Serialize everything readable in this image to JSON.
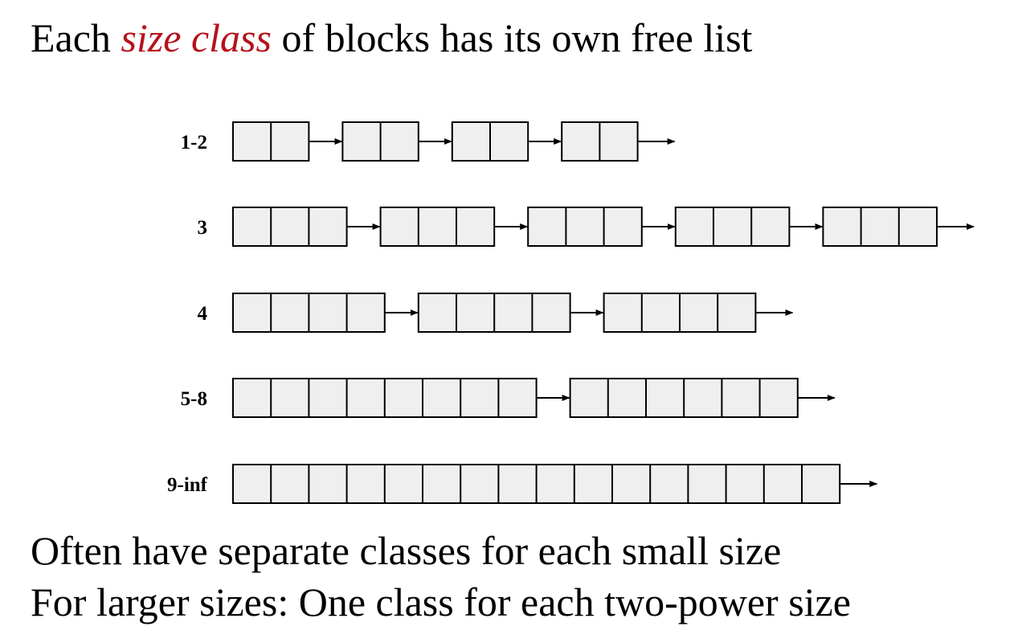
{
  "title": {
    "prefix": "Each ",
    "emphasis": "size class",
    "suffix": " of blocks has its own free list"
  },
  "colors": {
    "emphasis": "#b5121b",
    "cell_fill": "#efefef",
    "stroke": "#000000"
  },
  "free_lists": [
    {
      "label": "1-2",
      "blocks": [
        2,
        2,
        2,
        2
      ]
    },
    {
      "label": "3",
      "blocks": [
        3,
        3,
        3,
        3,
        3
      ]
    },
    {
      "label": "4",
      "blocks": [
        4,
        4,
        4
      ]
    },
    {
      "label": "5-8",
      "blocks": [
        8,
        6
      ]
    },
    {
      "label": "9-inf",
      "blocks": [
        16
      ]
    }
  ],
  "bullets": [
    "Often have separate classes for each small size",
    "For larger sizes: One class for each two-power size"
  ]
}
